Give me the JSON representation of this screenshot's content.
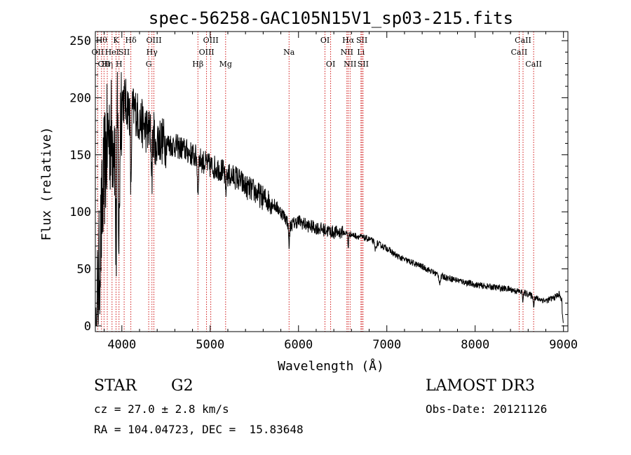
{
  "chart_data": {
    "type": "line",
    "title": "spec-56258-GAC105N15V1_sp03-215.fits",
    "xlabel": "Wavelength (Å)",
    "ylabel": "Flux (relative)",
    "xlim": [
      3700,
      9050
    ],
    "ylim": [
      -5,
      258
    ],
    "xticks": [
      4000,
      5000,
      6000,
      7000,
      8000,
      9000
    ],
    "yticks": [
      0,
      50,
      100,
      150,
      200,
      250
    ],
    "line_color": "#000000",
    "marker_color": "#cc0000",
    "spectrum_anchors": [
      [
        3700,
        0
      ],
      [
        3720,
        15
      ],
      [
        3760,
        75
      ],
      [
        3800,
        135
      ],
      [
        3850,
        170
      ],
      [
        3900,
        165
      ],
      [
        3950,
        185
      ],
      [
        4000,
        200
      ],
      [
        4050,
        195
      ],
      [
        4100,
        188
      ],
      [
        4150,
        190
      ],
      [
        4200,
        180
      ],
      [
        4300,
        170
      ],
      [
        4400,
        165
      ],
      [
        4500,
        160
      ],
      [
        4600,
        158
      ],
      [
        4700,
        155
      ],
      [
        4800,
        150
      ],
      [
        4900,
        145
      ],
      [
        5000,
        140
      ],
      [
        5100,
        138
      ],
      [
        5200,
        132
      ],
      [
        5300,
        130
      ],
      [
        5400,
        122
      ],
      [
        5500,
        118
      ],
      [
        5600,
        112
      ],
      [
        5700,
        108
      ],
      [
        5800,
        100
      ],
      [
        5850,
        95
      ],
      [
        5900,
        88
      ],
      [
        6000,
        92
      ],
      [
        6100,
        88
      ],
      [
        6200,
        86
      ],
      [
        6300,
        84
      ],
      [
        6400,
        82
      ],
      [
        6500,
        82
      ],
      [
        6600,
        80
      ],
      [
        6700,
        78
      ],
      [
        6800,
        76
      ],
      [
        6900,
        72
      ],
      [
        7000,
        68
      ],
      [
        7100,
        62
      ],
      [
        7200,
        58
      ],
      [
        7300,
        55
      ],
      [
        7400,
        52
      ],
      [
        7500,
        48
      ],
      [
        7600,
        44
      ],
      [
        7700,
        42
      ],
      [
        7800,
        40
      ],
      [
        7900,
        38
      ],
      [
        8000,
        36
      ],
      [
        8200,
        34
      ],
      [
        8400,
        32
      ],
      [
        8500,
        30
      ],
      [
        8600,
        28
      ],
      [
        8700,
        24
      ],
      [
        8800,
        22
      ],
      [
        8900,
        25
      ],
      [
        8950,
        28
      ],
      [
        8990,
        20
      ],
      [
        9000,
        0
      ]
    ],
    "line_markers": [
      {
        "wavelength": 3727,
        "label": "OII",
        "row": 2
      },
      {
        "wavelength": 3770,
        "label": "Hθ",
        "row": 1
      },
      {
        "wavelength": 3798,
        "label": "OII",
        "row": 3
      },
      {
        "wavelength": 3835,
        "label": "Hη",
        "row": 3
      },
      {
        "wavelength": 3889,
        "label": "HeI",
        "row": 2
      },
      {
        "wavelength": 3934,
        "label": "K",
        "row": 1
      },
      {
        "wavelength": 3968,
        "label": "H",
        "row": 3
      },
      {
        "wavelength": 4026,
        "label": "SII",
        "row": 2
      },
      {
        "wavelength": 4102,
        "label": "Hδ",
        "row": 1
      },
      {
        "wavelength": 4304,
        "label": "G",
        "row": 3
      },
      {
        "wavelength": 4341,
        "label": "Hγ",
        "row": 2
      },
      {
        "wavelength": 4363,
        "label": "OIII",
        "row": 1
      },
      {
        "wavelength": 4861,
        "label": "Hβ",
        "row": 3
      },
      {
        "wavelength": 4959,
        "label": "OIII",
        "row": 2
      },
      {
        "wavelength": 5007,
        "label": "OIII",
        "row": 1
      },
      {
        "wavelength": 5175,
        "label": "Mg",
        "row": 3
      },
      {
        "wavelength": 5893,
        "label": "Na",
        "row": 2
      },
      {
        "wavelength": 6300,
        "label": "OI",
        "row": 1
      },
      {
        "wavelength": 6364,
        "label": "OI",
        "row": 3
      },
      {
        "wavelength": 6548,
        "label": "NII",
        "row": 2
      },
      {
        "wavelength": 6563,
        "label": "Hα",
        "row": 1
      },
      {
        "wavelength": 6584,
        "label": "NII",
        "row": 3
      },
      {
        "wavelength": 6707,
        "label": "Li",
        "row": 2
      },
      {
        "wavelength": 6717,
        "label": "SII",
        "row": 1
      },
      {
        "wavelength": 6731,
        "label": "SII",
        "row": 3
      },
      {
        "wavelength": 8498,
        "label": "CaII",
        "row": 2
      },
      {
        "wavelength": 8542,
        "label": "CaII",
        "row": 1
      },
      {
        "wavelength": 8662,
        "label": "CaII",
        "row": 3
      }
    ]
  },
  "info": {
    "object_class": "STAR",
    "subclass": "G2",
    "redshift": "cz = 27.0 ± 2.8 km/s",
    "coordinates": "RA = 104.04723, DEC =  15.83648",
    "survey": "LAMOST DR3",
    "obs_date": "Obs-Date: 20121126"
  }
}
